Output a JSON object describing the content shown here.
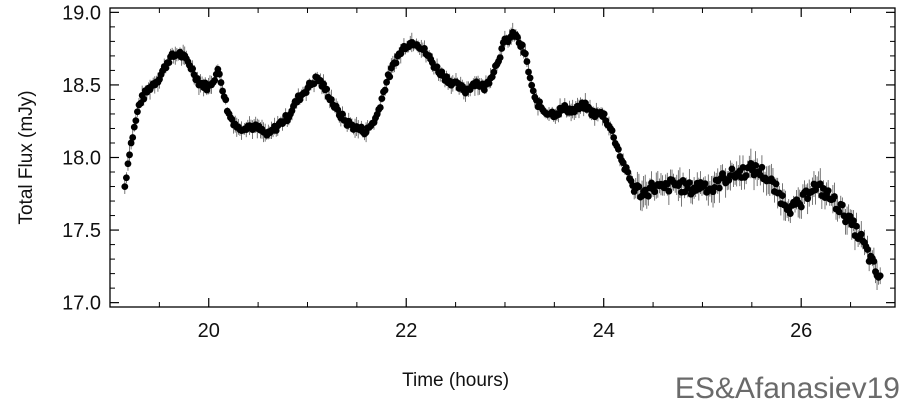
{
  "chart_data": {
    "type": "scatter",
    "title": "",
    "xlabel": "Time (hours)",
    "ylabel": "Total Flux (mJy)",
    "xlim": [
      19.0,
      26.95
    ],
    "ylim": [
      16.97,
      19.03
    ],
    "xticks": [
      20,
      22,
      24,
      26
    ],
    "yticks": [
      17.0,
      17.5,
      18.0,
      18.5,
      19.0
    ],
    "xtick_labels": [
      "20",
      "22",
      "24",
      "26"
    ],
    "ytick_labels": [
      "17.0",
      "17.5",
      "18.0",
      "18.5",
      "19.0"
    ],
    "x_minor_step": 0.5,
    "y_minor_step": 0.1,
    "grid": false,
    "marker": "filled-circle",
    "color": "#000000",
    "error_bars": true,
    "approximate_trend": {
      "x": [
        19.15,
        19.2,
        19.3,
        19.4,
        19.5,
        19.6,
        19.7,
        19.8,
        19.9,
        20.0,
        20.1,
        20.2,
        20.3,
        20.4,
        20.5,
        20.6,
        20.7,
        20.8,
        20.9,
        21.0,
        21.1,
        21.2,
        21.3,
        21.4,
        21.5,
        21.6,
        21.7,
        21.8,
        21.9,
        22.0,
        22.1,
        22.2,
        22.3,
        22.4,
        22.5,
        22.6,
        22.7,
        22.8,
        22.9,
        23.0,
        23.1,
        23.2,
        23.3,
        23.4,
        23.5,
        23.6,
        23.7,
        23.8,
        23.9,
        24.0,
        24.1,
        24.2,
        24.3,
        24.4,
        24.5,
        24.6,
        24.7,
        24.8,
        24.9,
        25.0,
        25.1,
        25.2,
        25.3,
        25.4,
        25.5,
        25.6,
        25.7,
        25.8,
        25.9,
        26.0,
        26.1,
        26.2,
        26.3,
        26.4,
        26.5,
        26.6,
        26.7,
        26.8
      ],
      "y": [
        17.8,
        18.05,
        18.38,
        18.48,
        18.55,
        18.68,
        18.72,
        18.65,
        18.52,
        18.48,
        18.6,
        18.3,
        18.2,
        18.22,
        18.2,
        18.15,
        18.22,
        18.28,
        18.4,
        18.48,
        18.55,
        18.45,
        18.32,
        18.24,
        18.2,
        18.18,
        18.28,
        18.52,
        18.68,
        18.78,
        18.8,
        18.72,
        18.62,
        18.55,
        18.5,
        18.46,
        18.52,
        18.48,
        18.62,
        18.8,
        18.85,
        18.72,
        18.4,
        18.32,
        18.3,
        18.34,
        18.32,
        18.36,
        18.3,
        18.3,
        18.15,
        17.95,
        17.8,
        17.75,
        17.8,
        17.78,
        17.82,
        17.8,
        17.78,
        17.82,
        17.78,
        17.85,
        17.88,
        17.9,
        17.92,
        17.9,
        17.82,
        17.72,
        17.65,
        17.68,
        17.8,
        17.78,
        17.72,
        17.65,
        17.55,
        17.45,
        17.3,
        17.15
      ]
    },
    "notes_text": ""
  },
  "credit": "ES&Afanasiev19"
}
